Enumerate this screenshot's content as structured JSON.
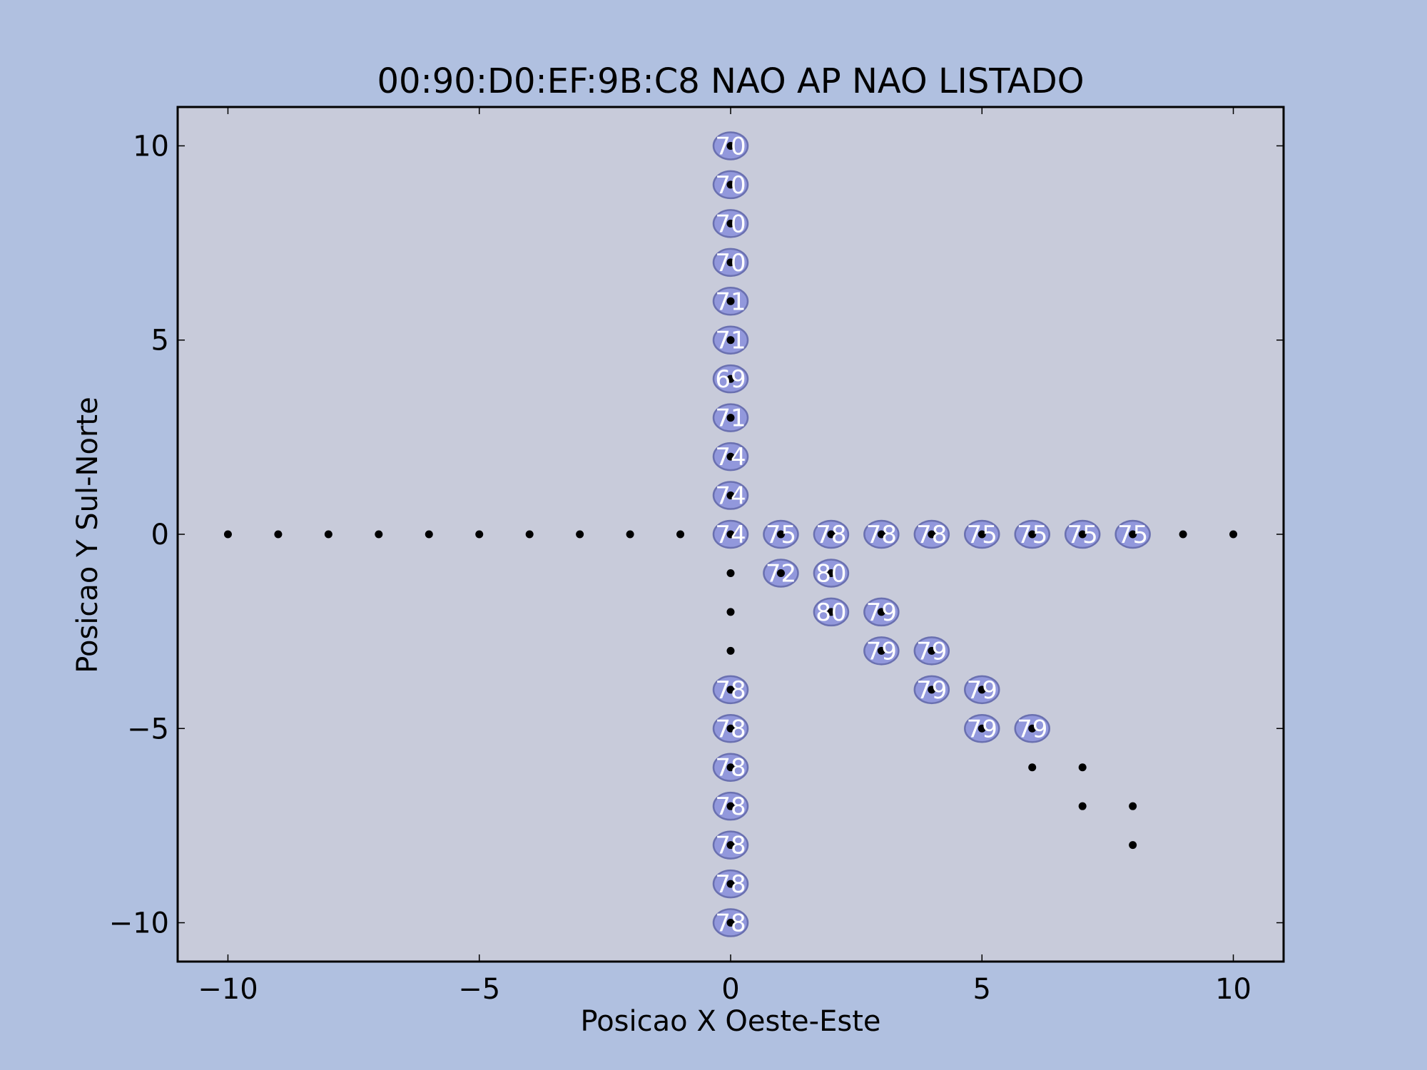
{
  "chart_data": {
    "type": "scatter",
    "title": "00:90:D0:EF:9B:C8 NAO AP NAO LISTADO",
    "xlabel": "Posicao X Oeste-Este",
    "ylabel": "Posicao Y Sul-Norte",
    "xlim": [
      -11,
      11
    ],
    "ylim": [
      -11,
      11
    ],
    "xticks": [
      -10,
      -5,
      0,
      5,
      10
    ],
    "yticks": [
      -10,
      -5,
      0,
      5,
      10
    ],
    "xtick_labels": [
      "−10",
      "−5",
      "0",
      "5",
      "10"
    ],
    "ytick_labels": [
      "−10",
      "−5",
      "0",
      "5",
      "10"
    ],
    "grid": false,
    "colors": {
      "figure_bg": "#b0c0e0",
      "axes_bg": "#c8cbda",
      "point": "#000000",
      "ellipse_fill": "#8c92dc",
      "ellipse_edge": "#6a70b0",
      "marker_text": "#ffffff"
    },
    "points": [
      {
        "x": -10,
        "y": 0
      },
      {
        "x": -9,
        "y": 0
      },
      {
        "x": -8,
        "y": 0
      },
      {
        "x": -7,
        "y": 0
      },
      {
        "x": -6,
        "y": 0
      },
      {
        "x": -5,
        "y": 0
      },
      {
        "x": -4,
        "y": 0
      },
      {
        "x": -3,
        "y": 0
      },
      {
        "x": -2,
        "y": 0
      },
      {
        "x": -1,
        "y": 0
      },
      {
        "x": 0,
        "y": 0,
        "value": "74"
      },
      {
        "x": 1,
        "y": 0,
        "value": "75"
      },
      {
        "x": 2,
        "y": 0,
        "value": "78"
      },
      {
        "x": 3,
        "y": 0,
        "value": "78"
      },
      {
        "x": 4,
        "y": 0,
        "value": "78"
      },
      {
        "x": 5,
        "y": 0,
        "value": "75"
      },
      {
        "x": 6,
        "y": 0,
        "value": "75"
      },
      {
        "x": 7,
        "y": 0,
        "value": "75"
      },
      {
        "x": 8,
        "y": 0,
        "value": "75"
      },
      {
        "x": 9,
        "y": 0
      },
      {
        "x": 10,
        "y": 0
      },
      {
        "x": 0,
        "y": 1,
        "value": "74"
      },
      {
        "x": 0,
        "y": 2,
        "value": "74"
      },
      {
        "x": 0,
        "y": 3,
        "value": "71"
      },
      {
        "x": 0,
        "y": 4,
        "value": "69"
      },
      {
        "x": 0,
        "y": 5,
        "value": "71"
      },
      {
        "x": 0,
        "y": 6,
        "value": "71"
      },
      {
        "x": 0,
        "y": 7,
        "value": "70"
      },
      {
        "x": 0,
        "y": 8,
        "value": "70"
      },
      {
        "x": 0,
        "y": 9,
        "value": "70"
      },
      {
        "x": 0,
        "y": 10,
        "value": "70"
      },
      {
        "x": 0,
        "y": -1
      },
      {
        "x": 0,
        "y": -2
      },
      {
        "x": 0,
        "y": -3
      },
      {
        "x": 0,
        "y": -4,
        "value": "78"
      },
      {
        "x": 0,
        "y": -5,
        "value": "78"
      },
      {
        "x": 0,
        "y": -6,
        "value": "78"
      },
      {
        "x": 0,
        "y": -7,
        "value": "78"
      },
      {
        "x": 0,
        "y": -8,
        "value": "78"
      },
      {
        "x": 0,
        "y": -9,
        "value": "78"
      },
      {
        "x": 0,
        "y": -10,
        "value": "78"
      },
      {
        "x": 1,
        "y": -1,
        "value": "72"
      },
      {
        "x": 2,
        "y": -1,
        "value": "80"
      },
      {
        "x": 2,
        "y": -2,
        "value": "80"
      },
      {
        "x": 3,
        "y": -2,
        "value": "79"
      },
      {
        "x": 3,
        "y": -3,
        "value": "79"
      },
      {
        "x": 4,
        "y": -3,
        "value": "79"
      },
      {
        "x": 4,
        "y": -4,
        "value": "79"
      },
      {
        "x": 5,
        "y": -4,
        "value": "79"
      },
      {
        "x": 5,
        "y": -5,
        "value": "79"
      },
      {
        "x": 6,
        "y": -5,
        "value": "79"
      },
      {
        "x": 6,
        "y": -6
      },
      {
        "x": 7,
        "y": -6
      },
      {
        "x": 7,
        "y": -7
      },
      {
        "x": 8,
        "y": -7
      },
      {
        "x": 8,
        "y": -8
      }
    ]
  }
}
